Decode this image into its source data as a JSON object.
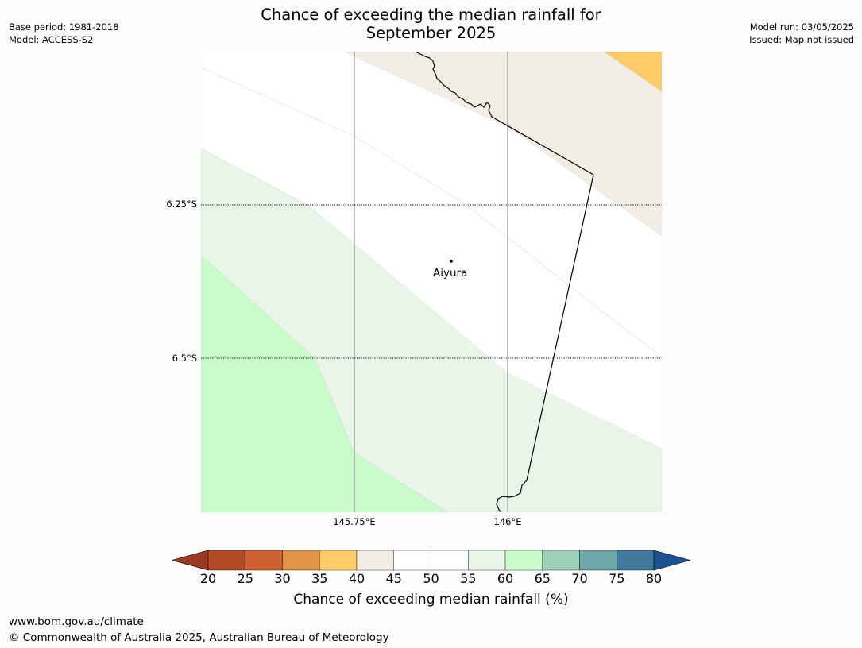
{
  "title": {
    "line1": "Chance of exceeding the median rainfall for",
    "line2": "September 2025"
  },
  "meta_left": {
    "base_period": "Base period: 1981-2018",
    "model": "Model: ACCESS-S2"
  },
  "meta_right": {
    "model_run": "Model run: 03/05/2025",
    "issued": "Issued: Map not issued"
  },
  "map": {
    "lat_labels": [
      "6.25°S",
      "6.5°S"
    ],
    "lon_labels": [
      "145.75°E",
      "146°E"
    ],
    "place": "Aiyura",
    "band_colors": {
      "35-40": "#fecb66",
      "40-45": "#f2ede5",
      "50-55": "#ffffff",
      "55-60": "#e9f5e8",
      "60-65": "#c9fcca"
    }
  },
  "colorbar": {
    "ticks": [
      "20",
      "25",
      "30",
      "35",
      "40",
      "45",
      "50",
      "55",
      "60",
      "65",
      "70",
      "75",
      "80"
    ],
    "colors": [
      "#b24a25",
      "#cd6131",
      "#e29446",
      "#fecb66",
      "#f2ede5",
      "#ffffff",
      "#ffffff",
      "#e9f5e8",
      "#c9fcca",
      "#9ecfb8",
      "#6fa6a8",
      "#3f7a9c"
    ],
    "under_color": "#9b3a22",
    "over_color": "#1c5290",
    "label": "Chance of exceeding median rainfall (%)"
  },
  "footer": {
    "url": "www.bom.gov.au/climate",
    "copyright": "© Commonwealth of Australia 2025, Australian Bureau of Meteorology"
  }
}
